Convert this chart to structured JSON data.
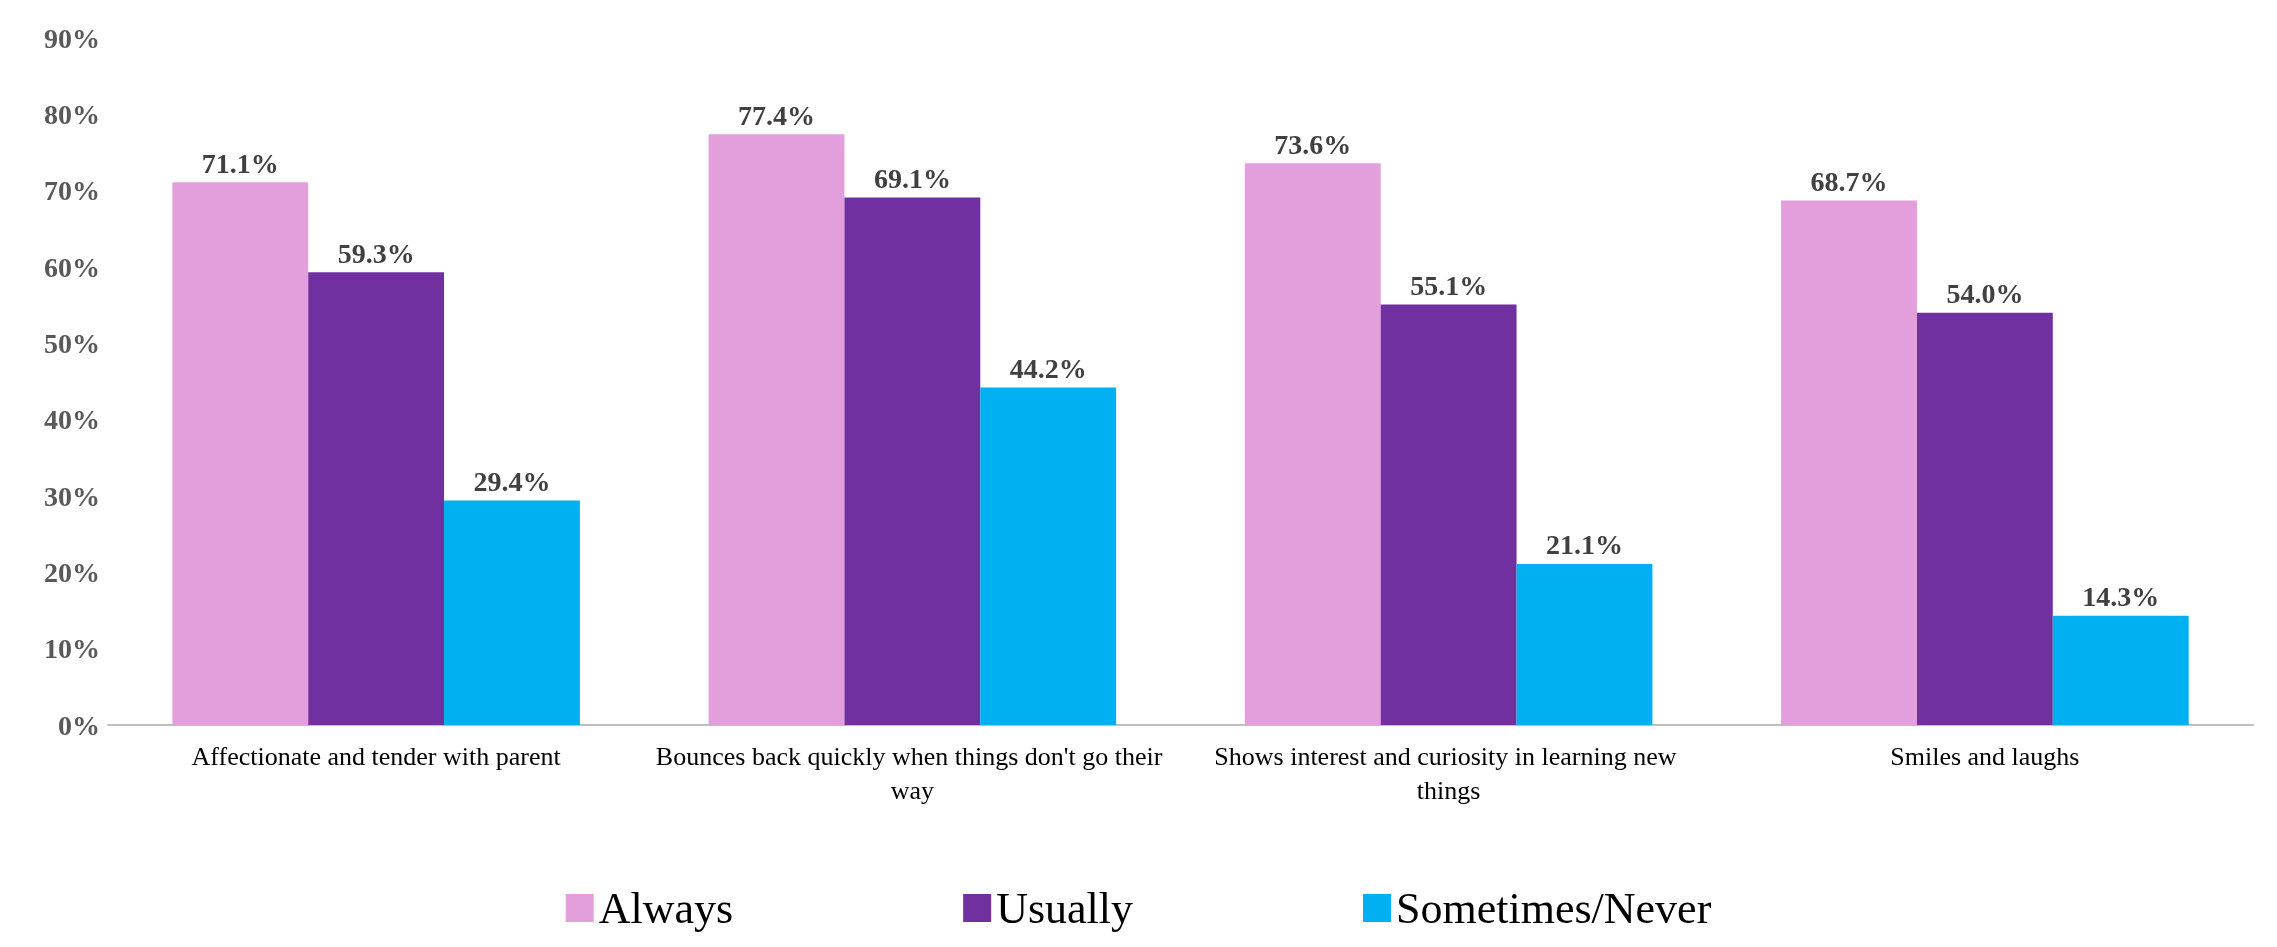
{
  "chart_data": {
    "type": "bar",
    "categories": [
      "Affectionate and tender with parent",
      "Bounces back quickly when things don't go their way",
      "Shows interest and curiosity in learning new things",
      "Smiles and laughs"
    ],
    "series": [
      {
        "name": "Always",
        "color": "#e39fdc",
        "values": [
          71.1,
          77.4,
          73.6,
          68.7
        ],
        "value_labels": [
          "71.1%",
          "77.4%",
          "73.6%",
          "68.7%"
        ]
      },
      {
        "name": "Usually",
        "color": "#7030a0",
        "values": [
          59.3,
          69.1,
          55.1,
          54.0
        ],
        "value_labels": [
          "59.3%",
          "69.1%",
          "55.1%",
          "54.0%"
        ]
      },
      {
        "name": "Sometimes/Never",
        "color": "#00b0f0",
        "values": [
          29.4,
          44.2,
          21.1,
          14.3
        ],
        "value_labels": [
          "29.4%",
          "44.2%",
          "21.1%",
          "14.3%"
        ]
      }
    ],
    "ylim": [
      0,
      90
    ],
    "yticks": [
      {
        "value": 0,
        "label": "0%"
      },
      {
        "value": 10,
        "label": "10%"
      },
      {
        "value": 20,
        "label": "20%"
      },
      {
        "value": 30,
        "label": "30%"
      },
      {
        "value": 40,
        "label": "40%"
      },
      {
        "value": 50,
        "label": "50%"
      },
      {
        "value": 60,
        "label": "60%"
      },
      {
        "value": 70,
        "label": "70%"
      },
      {
        "value": 80,
        "label": "80%"
      },
      {
        "value": 90,
        "label": "90%"
      }
    ],
    "legend": "bottom"
  }
}
